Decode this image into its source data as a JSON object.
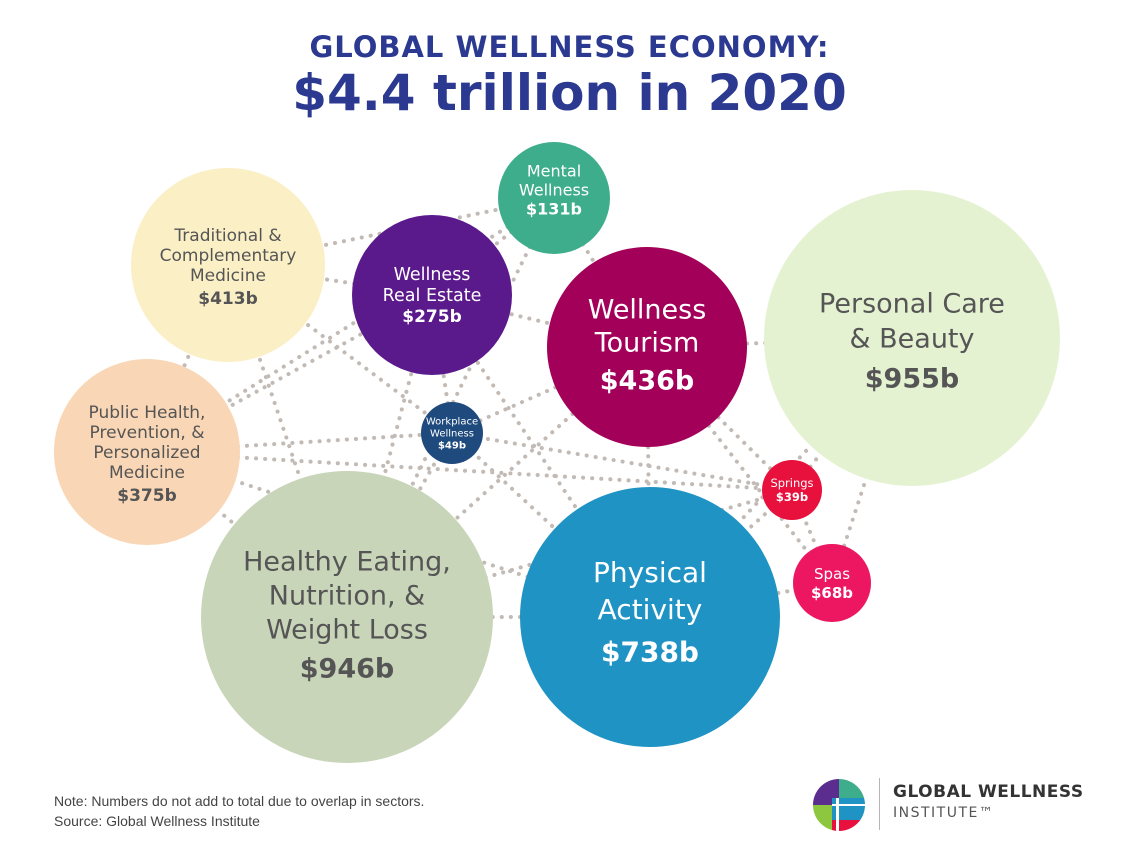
{
  "header": {
    "title_line1": "GLOBAL WELLNESS ECONOMY:",
    "title_line2": "$4.4 trillion in 2020",
    "title_color": "#2b3990"
  },
  "chart_data": {
    "type": "bubble",
    "unit": "billion USD",
    "bubbles": [
      {
        "label": [
          "Traditional &",
          "Complementary",
          "Medicine"
        ],
        "value_label": "$413b",
        "value": 413,
        "fill": "#fbefc6",
        "text_color": "#555555"
      },
      {
        "label": [
          "Mental",
          "Wellness"
        ],
        "value_label": "$131b",
        "value": 131,
        "fill": "#3ead8b",
        "text_color": "#ffffff"
      },
      {
        "label": [
          "Wellness",
          "Real Estate"
        ],
        "value_label": "$275b",
        "value": 275,
        "fill": "#5b1a8c",
        "text_color": "#ffffff"
      },
      {
        "label": [
          "Wellness",
          "Tourism"
        ],
        "value_label": "$436b",
        "value": 436,
        "fill": "#a3005a",
        "text_color": "#ffffff"
      },
      {
        "label": [
          "Personal Care",
          "& Beauty"
        ],
        "value_label": "$955b",
        "value": 955,
        "fill": "#e5f2d2",
        "text_color": "#555555"
      },
      {
        "label": [
          "Public Health,",
          "Prevention, &",
          "Personalized",
          "Medicine"
        ],
        "value_label": "$375b",
        "value": 375,
        "fill": "#f9d6b5",
        "text_color": "#555555"
      },
      {
        "label": [
          "Workplace",
          "Wellness"
        ],
        "value_label": "$49b",
        "value": 49,
        "fill": "#1f4a7e",
        "text_color": "#ffffff"
      },
      {
        "label": [
          "Springs"
        ],
        "value_label": "$39b",
        "value": 39,
        "fill": "#e8103c",
        "text_color": "#ffffff"
      },
      {
        "label": [
          "Spas"
        ],
        "value_label": "$68b",
        "value": 68,
        "fill": "#ec1760",
        "text_color": "#ffffff"
      },
      {
        "label": [
          "Healthy Eating,",
          "Nutrition, &",
          "Weight Loss"
        ],
        "value_label": "$946b",
        "value": 946,
        "fill": "#c8d5b9",
        "text_color": "#555555"
      },
      {
        "label": [
          "Physical",
          "Activity"
        ],
        "value_label": "$738b",
        "value": 738,
        "fill": "#1f93c4",
        "text_color": "#ffffff"
      }
    ],
    "connector_color": "#c2bab4"
  },
  "footer": {
    "note": "Note: Numbers do not add to total due to overlap in sectors.",
    "source": "Source: Global Wellness Institute",
    "logo_line1": "GLOBAL WELLNESS",
    "logo_line2": "INSTITUTE™"
  },
  "logo_colors": {
    "purple": "#5b2d8e",
    "green": "#8dc63f",
    "blue": "#1f93c4",
    "teal": "#3ead8b",
    "red": "#e8103c"
  }
}
